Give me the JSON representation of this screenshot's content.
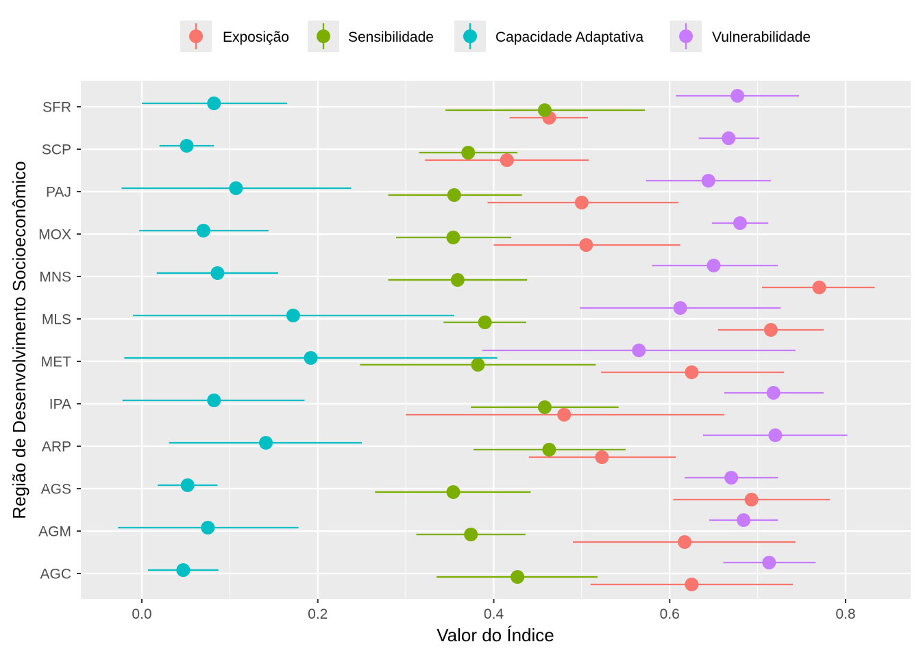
{
  "chart_data": {
    "type": "pointrange",
    "xlabel": "Valor do Índice",
    "ylabel": "Região de Desenvolvimento Socioeconômico",
    "xlim": [
      -0.07,
      0.87
    ],
    "xticks": [
      0.0,
      0.2,
      0.4,
      0.6,
      0.8
    ],
    "xtick_labels": [
      "0.0",
      "0.2",
      "0.4",
      "0.6",
      "0.8"
    ],
    "categories": [
      "SFR",
      "SCP",
      "PAJ",
      "MOX",
      "MNS",
      "MLS",
      "MET",
      "IPA",
      "ARP",
      "AGS",
      "AGM",
      "AGC"
    ],
    "grid": true,
    "legend_position": "top",
    "series": [
      {
        "name": "Exposição",
        "color": "#F8766D",
        "values": [
          {
            "y": "SFR",
            "x": 0.463,
            "low": 0.418,
            "high": 0.507
          },
          {
            "y": "SCP",
            "x": 0.415,
            "low": 0.322,
            "high": 0.508
          },
          {
            "y": "PAJ",
            "x": 0.5,
            "low": 0.393,
            "high": 0.61
          },
          {
            "y": "MOX",
            "x": 0.505,
            "low": 0.4,
            "high": 0.612
          },
          {
            "y": "MNS",
            "x": 0.77,
            "low": 0.705,
            "high": 0.833
          },
          {
            "y": "MLS",
            "x": 0.715,
            "low": 0.655,
            "high": 0.775
          },
          {
            "y": "MET",
            "x": 0.625,
            "low": 0.522,
            "high": 0.73
          },
          {
            "y": "IPA",
            "x": 0.48,
            "low": 0.3,
            "high": 0.662
          },
          {
            "y": "ARP",
            "x": 0.523,
            "low": 0.44,
            "high": 0.607
          },
          {
            "y": "AGS",
            "x": 0.693,
            "low": 0.604,
            "high": 0.782
          },
          {
            "y": "AGM",
            "x": 0.617,
            "low": 0.49,
            "high": 0.743
          },
          {
            "y": "AGC",
            "x": 0.625,
            "low": 0.51,
            "high": 0.74
          }
        ]
      },
      {
        "name": "Sensibilidade",
        "color": "#7CAE00",
        "values": [
          {
            "y": "SFR",
            "x": 0.458,
            "low": 0.345,
            "high": 0.572
          },
          {
            "y": "SCP",
            "x": 0.371,
            "low": 0.315,
            "high": 0.427
          },
          {
            "y": "PAJ",
            "x": 0.355,
            "low": 0.28,
            "high": 0.432
          },
          {
            "y": "MOX",
            "x": 0.354,
            "low": 0.289,
            "high": 0.42
          },
          {
            "y": "MNS",
            "x": 0.359,
            "low": 0.28,
            "high": 0.438
          },
          {
            "y": "MLS",
            "x": 0.39,
            "low": 0.343,
            "high": 0.437
          },
          {
            "y": "MET",
            "x": 0.382,
            "low": 0.248,
            "high": 0.516
          },
          {
            "y": "IPA",
            "x": 0.458,
            "low": 0.374,
            "high": 0.542
          },
          {
            "y": "ARP",
            "x": 0.463,
            "low": 0.377,
            "high": 0.55
          },
          {
            "y": "AGS",
            "x": 0.354,
            "low": 0.265,
            "high": 0.442
          },
          {
            "y": "AGM",
            "x": 0.374,
            "low": 0.312,
            "high": 0.436
          },
          {
            "y": "AGC",
            "x": 0.427,
            "low": 0.335,
            "high": 0.518
          }
        ]
      },
      {
        "name": "Capacidade Adaptativa",
        "color": "#00BFC4",
        "values": [
          {
            "y": "SFR",
            "x": 0.082,
            "low": 0.0,
            "high": 0.165
          },
          {
            "y": "SCP",
            "x": 0.051,
            "low": 0.02,
            "high": 0.082
          },
          {
            "y": "PAJ",
            "x": 0.107,
            "low": -0.023,
            "high": 0.238
          },
          {
            "y": "MOX",
            "x": 0.07,
            "low": -0.003,
            "high": 0.144
          },
          {
            "y": "MNS",
            "x": 0.086,
            "low": 0.017,
            "high": 0.155
          },
          {
            "y": "MLS",
            "x": 0.172,
            "low": -0.01,
            "high": 0.355
          },
          {
            "y": "MET",
            "x": 0.192,
            "low": -0.02,
            "high": 0.404
          },
          {
            "y": "IPA",
            "x": 0.082,
            "low": -0.022,
            "high": 0.185
          },
          {
            "y": "ARP",
            "x": 0.141,
            "low": 0.031,
            "high": 0.25
          },
          {
            "y": "AGS",
            "x": 0.052,
            "low": 0.018,
            "high": 0.086
          },
          {
            "y": "AGM",
            "x": 0.075,
            "low": -0.027,
            "high": 0.178
          },
          {
            "y": "AGC",
            "x": 0.047,
            "low": 0.007,
            "high": 0.087
          }
        ]
      },
      {
        "name": "Vulnerabilidade",
        "color": "#C77CFF",
        "values": [
          {
            "y": "SFR",
            "x": 0.677,
            "low": 0.607,
            "high": 0.747
          },
          {
            "y": "SCP",
            "x": 0.667,
            "low": 0.633,
            "high": 0.702
          },
          {
            "y": "PAJ",
            "x": 0.644,
            "low": 0.573,
            "high": 0.715
          },
          {
            "y": "MOX",
            "x": 0.68,
            "low": 0.648,
            "high": 0.712
          },
          {
            "y": "MNS",
            "x": 0.65,
            "low": 0.58,
            "high": 0.723
          },
          {
            "y": "MLS",
            "x": 0.612,
            "low": 0.498,
            "high": 0.726
          },
          {
            "y": "MET",
            "x": 0.565,
            "low": 0.387,
            "high": 0.743
          },
          {
            "y": "IPA",
            "x": 0.718,
            "low": 0.662,
            "high": 0.775
          },
          {
            "y": "ARP",
            "x": 0.72,
            "low": 0.638,
            "high": 0.802
          },
          {
            "y": "AGS",
            "x": 0.67,
            "low": 0.617,
            "high": 0.723
          },
          {
            "y": "AGM",
            "x": 0.684,
            "low": 0.645,
            "high": 0.723
          },
          {
            "y": "AGC",
            "x": 0.713,
            "low": 0.661,
            "high": 0.766
          }
        ]
      }
    ]
  }
}
